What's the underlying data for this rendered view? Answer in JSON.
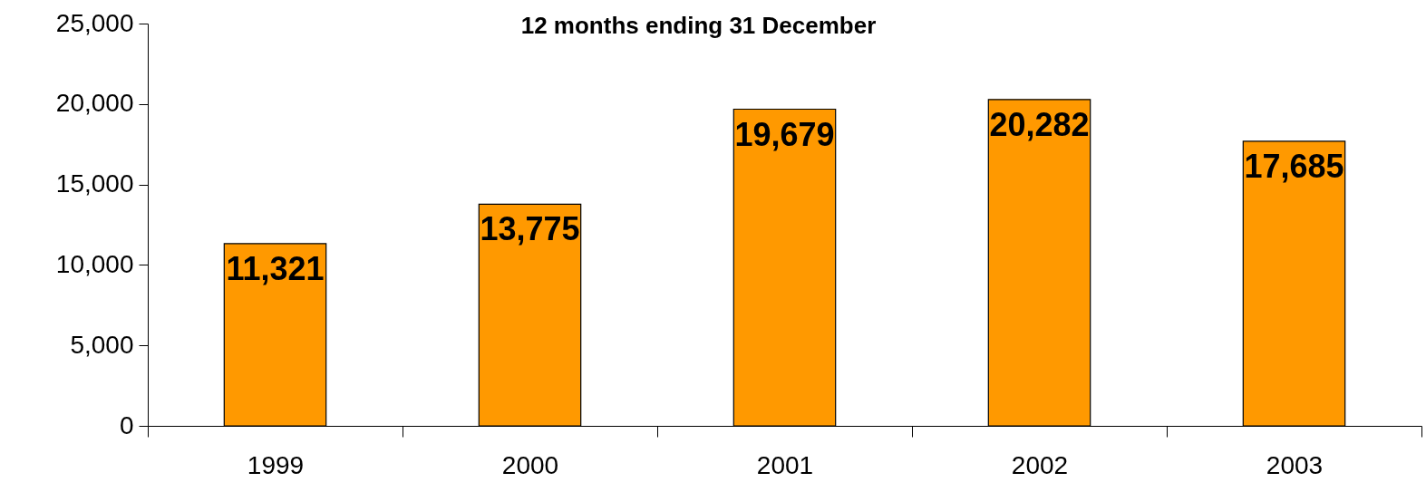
{
  "chart_data": {
    "type": "bar",
    "title": "12 months ending 31 December",
    "categories": [
      "1999",
      "2000",
      "2001",
      "2002",
      "2003"
    ],
    "values": [
      11321,
      13775,
      19679,
      20282,
      17685
    ],
    "color": "#ff9900",
    "value_labels": [
      "11,321",
      "13,775",
      "19,679",
      "20,282",
      "17,685"
    ],
    "ylim": [
      0,
      25000
    ],
    "yticks": [
      0,
      {
        "value": 5000,
        "label": "5,000"
      },
      {
        "value": 10000,
        "label": "10,000"
      },
      {
        "value": 15000,
        "label": "15,000"
      },
      {
        "value": 20000,
        "label": "20,000"
      },
      {
        "value": 25000,
        "label": "25,000"
      }
    ],
    "grid": false
  }
}
